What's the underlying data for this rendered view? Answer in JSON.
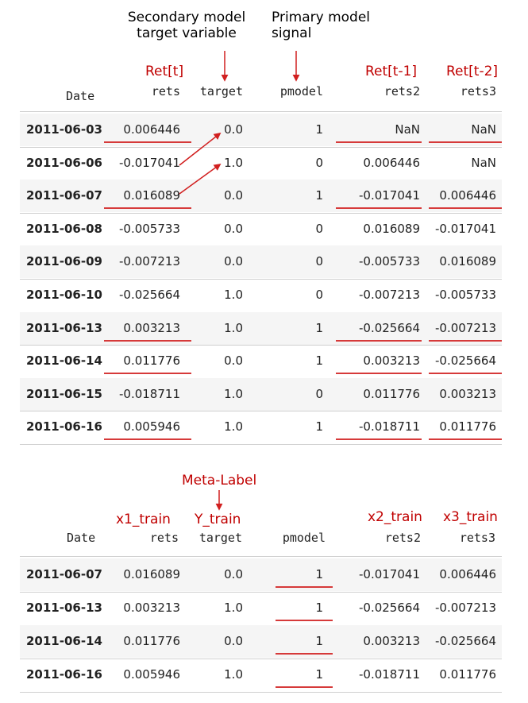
{
  "annotations": {
    "secondary_model": [
      "Secondary model",
      "target variable"
    ],
    "primary_model": [
      "Primary model",
      "signal"
    ],
    "ret_t": "Ret[t]",
    "ret_t1": "Ret[t-1]",
    "ret_t2": "Ret[t-2]",
    "meta_label": "Meta-Label",
    "x1_train": "x1_train",
    "y_train": "Y_train",
    "x2_train": "x2_train",
    "x3_train": "x3_train"
  },
  "table1": {
    "columns": [
      "Date",
      "rets",
      "target",
      "pmodel",
      "rets2",
      "rets3"
    ],
    "rows": [
      [
        "2011-06-03",
        "0.006446",
        "0.0",
        "1",
        "NaN",
        "NaN"
      ],
      [
        "2011-06-06",
        "-0.017041",
        "1.0",
        "0",
        "0.006446",
        "NaN"
      ],
      [
        "2011-06-07",
        "0.016089",
        "0.0",
        "1",
        "-0.017041",
        "0.006446"
      ],
      [
        "2011-06-08",
        "-0.005733",
        "0.0",
        "0",
        "0.016089",
        "-0.017041"
      ],
      [
        "2011-06-09",
        "-0.007213",
        "0.0",
        "0",
        "-0.005733",
        "0.016089"
      ],
      [
        "2011-06-10",
        "-0.025664",
        "1.0",
        "0",
        "-0.007213",
        "-0.005733"
      ],
      [
        "2011-06-13",
        "0.003213",
        "1.0",
        "1",
        "-0.025664",
        "-0.007213"
      ],
      [
        "2011-06-14",
        "0.011776",
        "0.0",
        "1",
        "0.003213",
        "-0.025664"
      ],
      [
        "2011-06-15",
        "-0.018711",
        "1.0",
        "0",
        "0.011776",
        "0.003213"
      ],
      [
        "2011-06-16",
        "0.005946",
        "1.0",
        "1",
        "-0.018711",
        "0.011776"
      ]
    ]
  },
  "table2": {
    "columns": [
      "Date",
      "rets",
      "target",
      "pmodel",
      "rets2",
      "rets3"
    ],
    "rows": [
      [
        "2011-06-07",
        "0.016089",
        "0.0",
        "1",
        "-0.017041",
        "0.006446"
      ],
      [
        "2011-06-13",
        "0.003213",
        "1.0",
        "1",
        "-0.025664",
        "-0.007213"
      ],
      [
        "2011-06-14",
        "0.011776",
        "0.0",
        "1",
        "0.003213",
        "-0.025664"
      ],
      [
        "2011-06-16",
        "0.005946",
        "1.0",
        "1",
        "-0.018711",
        "0.011776"
      ]
    ]
  },
  "colors": {
    "annotation_red": "#c00000",
    "underline_red": "#d63a3a",
    "arrow_red": "#d11f1f"
  }
}
